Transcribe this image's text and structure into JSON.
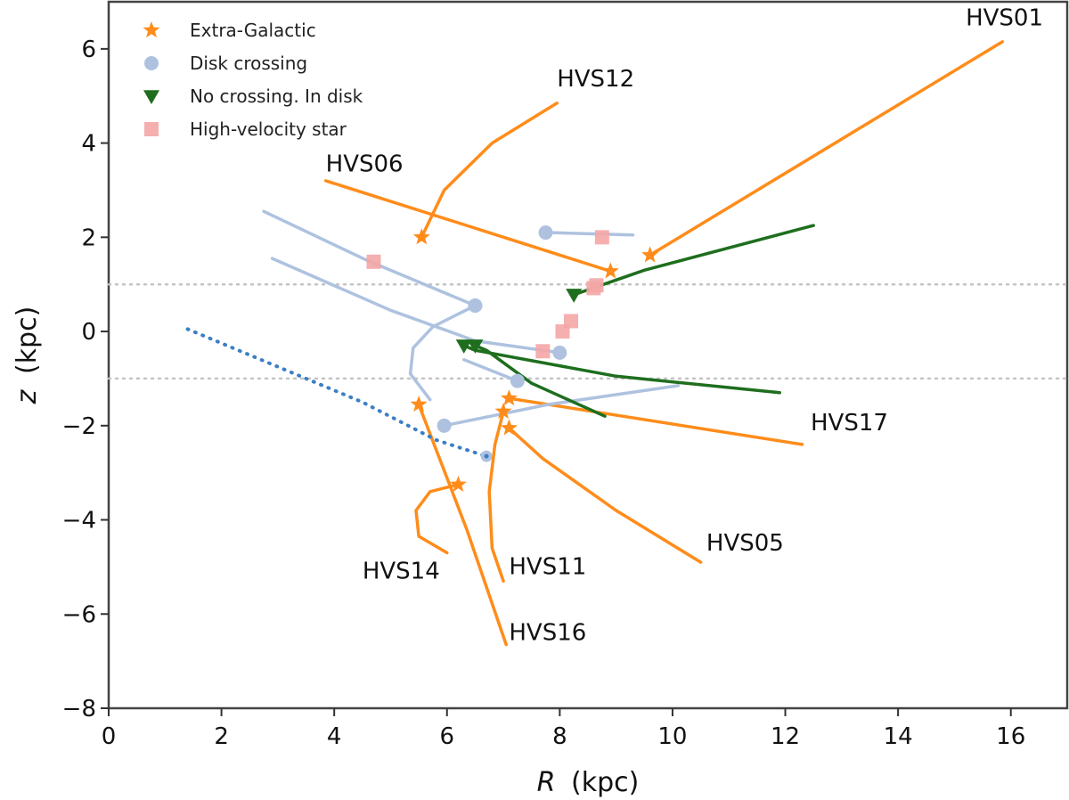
{
  "chart_data": {
    "type": "line",
    "xlabel_var": "R",
    "xlabel_unit": "(kpc)",
    "ylabel_var": "z",
    "ylabel_unit": "(kpc)",
    "xlim": [
      0,
      17
    ],
    "ylim": [
      -8,
      7
    ],
    "xticks": [
      0,
      2,
      4,
      6,
      8,
      10,
      12,
      14,
      16
    ],
    "yticks": [
      -8,
      -6,
      -4,
      -2,
      0,
      2,
      4,
      6
    ],
    "ytick_labels": [
      "−8",
      "−6",
      "−4",
      "−2",
      "0",
      "2",
      "4",
      "6"
    ],
    "hlines": [
      1,
      -1
    ],
    "grid": false,
    "legend_position": "top-left",
    "colors": {
      "extragalactic": "#ff8c1a",
      "disk": "#aec2e0",
      "nocross": "#1e6e1e",
      "hvs": "#f4a6a6",
      "dotted_blue": "#3b7fc4",
      "dotted_gray": "#c4c4c4"
    },
    "legend": [
      {
        "label": "Extra-Galactic",
        "marker": "star",
        "color_key": "extragalactic"
      },
      {
        "label": "Disk crossing",
        "marker": "circle",
        "color_key": "disk"
      },
      {
        "label": "No crossing. In disk",
        "marker": "triangle",
        "color_key": "nocross"
      },
      {
        "label": "High-velocity star",
        "marker": "square",
        "color_key": "hvs"
      }
    ],
    "series": [
      {
        "group": "extragalactic",
        "points": [
          [
            15.85,
            6.15
          ],
          [
            9.6,
            1.62
          ]
        ],
        "marker_index": 1
      },
      {
        "group": "extragalactic",
        "points": [
          [
            3.85,
            3.2
          ],
          [
            8.9,
            1.28
          ]
        ],
        "marker_index": 1
      },
      {
        "group": "extragalactic",
        "points": [
          [
            7.95,
            4.85
          ],
          [
            6.8,
            4.0
          ],
          [
            5.95,
            3.0
          ],
          [
            5.55,
            2.0
          ]
        ],
        "marker_index": 3
      },
      {
        "group": "extragalactic",
        "points": [
          [
            12.3,
            -2.4
          ],
          [
            7.1,
            -1.42
          ]
        ],
        "marker_index": 1
      },
      {
        "group": "extragalactic",
        "points": [
          [
            10.5,
            -4.9
          ],
          [
            9.0,
            -3.8
          ],
          [
            7.7,
            -2.7
          ],
          [
            7.1,
            -2.05
          ]
        ],
        "marker_index": 3
      },
      {
        "group": "extragalactic",
        "points": [
          [
            7.0,
            -5.3
          ],
          [
            6.8,
            -4.6
          ],
          [
            6.75,
            -3.4
          ],
          [
            6.85,
            -2.4
          ],
          [
            7.0,
            -1.7
          ]
        ],
        "marker_index": 4
      },
      {
        "group": "extragalactic",
        "points": [
          [
            7.05,
            -6.65
          ],
          [
            6.35,
            -4.2
          ],
          [
            5.5,
            -1.55
          ]
        ],
        "marker_index": 2
      },
      {
        "group": "extragalactic",
        "points": [
          [
            6.0,
            -4.7
          ],
          [
            5.5,
            -4.35
          ],
          [
            5.45,
            -3.8
          ],
          [
            5.7,
            -3.4
          ],
          [
            6.2,
            -3.25
          ]
        ],
        "marker_index": 4
      },
      {
        "group": "disk",
        "points": [
          [
            9.3,
            2.05
          ],
          [
            7.75,
            2.1
          ]
        ],
        "marker_index": 1
      },
      {
        "group": "disk",
        "points": [
          [
            2.75,
            2.55
          ],
          [
            4.6,
            1.5
          ],
          [
            6.5,
            0.55
          ]
        ],
        "marker_index": 2
      },
      {
        "group": "disk",
        "points": [
          [
            2.9,
            1.55
          ],
          [
            5.0,
            0.45
          ],
          [
            6.5,
            -0.2
          ],
          [
            8.0,
            -0.45
          ]
        ],
        "marker_index": 3
      },
      {
        "group": "disk",
        "points": [
          [
            5.7,
            -1.45
          ],
          [
            5.35,
            -0.9
          ],
          [
            5.4,
            -0.35
          ],
          [
            5.75,
            0.1
          ],
          [
            6.5,
            0.55
          ]
        ],
        "marker_index": 4
      },
      {
        "group": "disk",
        "points": [
          [
            10.1,
            -1.15
          ],
          [
            7.8,
            -1.55
          ],
          [
            5.95,
            -2.0
          ]
        ],
        "marker_index": 2
      },
      {
        "group": "disk",
        "points": [
          [
            6.3,
            -0.6
          ],
          [
            7.25,
            -1.05
          ]
        ],
        "marker_index": 1
      },
      {
        "group": "nocross",
        "points": [
          [
            12.5,
            2.25
          ],
          [
            9.5,
            1.3
          ],
          [
            8.25,
            0.78
          ]
        ],
        "marker_index": 2
      },
      {
        "group": "nocross",
        "points": [
          [
            11.9,
            -1.3
          ],
          [
            9.0,
            -0.95
          ],
          [
            6.5,
            -0.4
          ],
          [
            6.3,
            -0.3
          ]
        ],
        "marker_index": 3
      },
      {
        "group": "nocross",
        "points": [
          [
            8.8,
            -1.8
          ],
          [
            7.5,
            -1.1
          ],
          [
            6.7,
            -0.4
          ],
          [
            6.5,
            -0.3
          ]
        ],
        "marker_index": 3
      },
      {
        "group": "dotted_blue",
        "points": [
          [
            1.4,
            0.05
          ],
          [
            3.0,
            -0.75
          ],
          [
            4.5,
            -1.5
          ],
          [
            5.8,
            -2.3
          ],
          [
            6.7,
            -2.65
          ]
        ],
        "marker_index": 4
      }
    ],
    "hvs_points": [
      [
        4.7,
        1.48
      ],
      [
        8.75,
        2.0
      ],
      [
        8.65,
        0.98
      ],
      [
        8.6,
        0.92
      ],
      [
        8.2,
        0.22
      ],
      [
        8.05,
        0.0
      ],
      [
        7.7,
        -0.42
      ]
    ],
    "labels": [
      {
        "text": "HVS01",
        "x": 15.2,
        "y": 6.5
      },
      {
        "text": "HVS12",
        "x": 7.95,
        "y": 5.2
      },
      {
        "text": "HVS06",
        "x": 3.85,
        "y": 3.4
      },
      {
        "text": "HVS17",
        "x": 12.45,
        "y": -2.1
      },
      {
        "text": "HVS05",
        "x": 10.6,
        "y": -4.65
      },
      {
        "text": "HVS14",
        "x": 4.5,
        "y": -5.25
      },
      {
        "text": "HVS11",
        "x": 7.1,
        "y": -5.15
      },
      {
        "text": "HVS16",
        "x": 7.1,
        "y": -6.55
      }
    ]
  }
}
